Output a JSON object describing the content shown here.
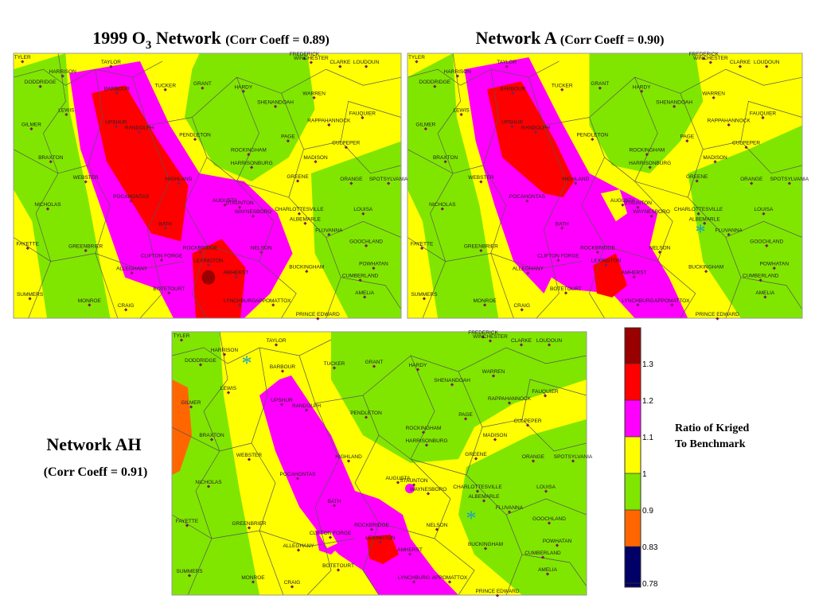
{
  "maps": [
    {
      "title": {
        "text": "1999 O",
        "sub": "3",
        "rest": " Network"
      },
      "coeff": "(Corr Coeff = 0.89)"
    },
    {
      "title": "Network A",
      "coeff": "(Corr Coeff = 0.90)"
    },
    {
      "title": "Network AH",
      "coeff": "(Corr Coeff = 0.91)"
    }
  ],
  "counties": [
    "TYLER",
    "HARRISON",
    "TAYLOR",
    "BARBOUR",
    "TUCKER",
    "GRANT",
    "HARDY",
    "FREDERICK",
    "WINCHESTER",
    "CLARKE",
    "LOUDOUN",
    "DODDRIDGE",
    "LEWIS",
    "SHENANDOAH",
    "WARREN",
    "FAUQUIER",
    "GILMER",
    "UPSHUR",
    "RANDOLPH",
    "RAPPAHANNOCK",
    "PENDLETON",
    "PAGE",
    "CULPEPER",
    "ROCKINGHAM",
    "BRAXTON",
    "MADISON",
    "HARRISONBURG",
    "WEBSTER",
    "GREENE",
    "ORANGE",
    "SPOTSYLVANIA",
    "HIGHLAND",
    "POCAHONTAS",
    "NICHOLAS",
    "AUGUSTA",
    "STAUNTON",
    "WAYNESBORO",
    "CHARLOTTESVILLE",
    "ALBEMARLE",
    "LOUISA",
    "BATH",
    "FLUVANNA",
    "FAYETTE",
    "GREENBRIER",
    "ROCKBRIDGE",
    "NELSON",
    "GOOCHLAND",
    "CLIFTON FORGE",
    "LEXINGTON",
    "ALLEGHANY",
    "AMHERST",
    "BUCKINGHAM",
    "POWHATAN",
    "CUMBERLAND",
    "BOTETOURT",
    "AMELIA",
    "SUMMERS",
    "MONROE",
    "CRAIG",
    "LYNCHBURG",
    "APPOMATTOX",
    "PRINCE EDWARD"
  ],
  "legend": {
    "label_lines": [
      "Ratio of Kriged",
      "To Benchmark"
    ],
    "ticks": [
      0.78,
      0.83,
      0.9,
      1,
      1.1,
      1.2,
      1.3
    ],
    "colors": [
      "#000066",
      "#ff6600",
      "#80e600",
      "#ffff00",
      "#ff00ff",
      "#ff0000",
      "#990000"
    ]
  }
}
